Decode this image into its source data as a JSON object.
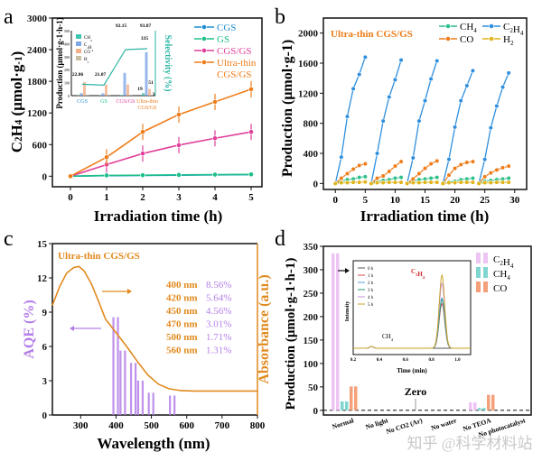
{
  "colors": {
    "cgs": "#1f8fd0",
    "gs": "#1dbf8a",
    "cgsgs": "#e0409a",
    "ultra": "#ee7d1a",
    "ch4": "#2dc08a",
    "c2h4": "#2f8fde",
    "co": "#ee7d1a",
    "h2": "#e0b41a",
    "aqe": "#b47ee8",
    "absorb": "#e08a1e"
  },
  "chart_data": [
    {
      "panel": "a",
      "type": "line",
      "xlabel": "Irradiation time (h)",
      "ylabel": "C2H4 (μmol·g-1)",
      "xlim": [
        -0.8,
        5.5
      ],
      "ylim": [
        -200,
        3000
      ],
      "xticks": [
        0,
        1,
        2,
        3,
        4,
        5
      ],
      "yticks": [
        0,
        600,
        1200,
        1800,
        2400,
        3000
      ],
      "x": [
        0,
        1,
        2,
        3,
        4,
        5
      ],
      "series": [
        {
          "name": "CGS",
          "values": [
            0,
            10,
            15,
            20,
            25,
            30
          ]
        },
        {
          "name": "GS",
          "values": [
            0,
            15,
            20,
            25,
            30,
            35
          ]
        },
        {
          "name": "CGS/GS",
          "values": [
            0,
            220,
            430,
            590,
            720,
            840
          ]
        },
        {
          "name": "Ultra-thin CGS/GS",
          "values": [
            0,
            360,
            840,
            1170,
            1410,
            1650
          ]
        }
      ],
      "legend": "top-right",
      "inset": {
        "type": "bar+line",
        "ylabel": "Production (μmol·g-1·h-1)",
        "y2label": "Selectivity (%)",
        "ylim": [
          0,
          500
        ],
        "yticks": [
          0,
          100,
          200,
          300,
          400,
          500
        ],
        "categories": [
          "CGS",
          "GS",
          "CGS/GS",
          "Ultra-thin CGS/GS"
        ],
        "series": [
          {
            "name": "CH4",
            "values": [
              2,
              2,
              5,
              19
            ]
          },
          {
            "name": "C2H4",
            "values": [
              20,
              18,
              175,
              335
            ]
          },
          {
            "name": "CO",
            "values": [
              105,
              85,
              85,
              51
            ]
          },
          {
            "name": "H2",
            "values": [
              2,
              2,
              2,
              3
            ]
          }
        ],
        "selectivity": [
          22.86,
          21.07,
          92.15,
          93.87
        ],
        "labels": [
          "22.86",
          "21.07",
          "92.15",
          "93.87",
          "335",
          "19",
          "51",
          "3"
        ]
      }
    },
    {
      "panel": "b",
      "type": "line",
      "title": "Ultra-thin CGS/GS",
      "xlabel": "Irradiation time (h)",
      "ylabel": "Production (μmol·g-1)",
      "xlim": [
        -2,
        32
      ],
      "ylim": [
        -80,
        2200
      ],
      "xticks": [
        0,
        5,
        10,
        15,
        20,
        25,
        30
      ],
      "yticks": [
        0,
        400,
        800,
        1200,
        1600,
        2000
      ],
      "legend": "top-right",
      "cycle_starts": [
        0,
        6,
        12,
        18,
        24
      ],
      "series": [
        {
          "name": "CH4",
          "cycles": [
            [
              0,
              30,
              50,
              60,
              80,
              90
            ],
            [
              0,
              30,
              40,
              50,
              70,
              80
            ],
            [
              0,
              30,
              50,
              60,
              70,
              80
            ],
            [
              0,
              20,
              30,
              50,
              60,
              70
            ],
            [
              0,
              30,
              40,
              50,
              60,
              70
            ]
          ]
        },
        {
          "name": "C2H4",
          "cycles": [
            [
              0,
              350,
              890,
              1260,
              1450,
              1680
            ],
            [
              0,
              400,
              830,
              1150,
              1380,
              1640
            ],
            [
              0,
              340,
              830,
              1100,
              1390,
              1630
            ],
            [
              0,
              320,
              750,
              1100,
              1300,
              1500
            ],
            [
              0,
              320,
              740,
              1030,
              1280,
              1470
            ]
          ]
        },
        {
          "name": "CO",
          "cycles": [
            [
              0,
              70,
              130,
              190,
              240,
              260
            ],
            [
              0,
              70,
              100,
              160,
              230,
              290
            ],
            [
              0,
              60,
              130,
              200,
              260,
              300
            ],
            [
              0,
              110,
              200,
              250,
              280,
              290
            ],
            [
              0,
              90,
              140,
              180,
              210,
              230
            ]
          ]
        },
        {
          "name": "H2",
          "cycles": [
            [
              0,
              10,
              10,
              15,
              15,
              20
            ],
            [
              0,
              10,
              10,
              15,
              15,
              15
            ],
            [
              0,
              10,
              10,
              15,
              15,
              15
            ],
            [
              0,
              10,
              10,
              15,
              15,
              15
            ],
            [
              0,
              10,
              10,
              15,
              15,
              15
            ]
          ]
        }
      ]
    },
    {
      "panel": "c",
      "type": "bar+line",
      "title": "Ultra-thin CGS/GS",
      "xlabel": "Wavelength (nm)",
      "ylabel": "AQE (%)",
      "y2label": "Absorbance (a.u.)",
      "xlim": [
        220,
        800
      ],
      "ylim": [
        0,
        15
      ],
      "xticks": [
        300,
        400,
        500,
        600,
        700,
        800
      ],
      "yticks": [
        0,
        3,
        6,
        9,
        12,
        15
      ],
      "aqe": [
        {
          "wl": "400 nm",
          "val": "8.56%",
          "x": 400,
          "y": 8.56
        },
        {
          "wl": "420 nm",
          "val": "5.64%",
          "x": 420,
          "y": 5.64
        },
        {
          "wl": "450 nm",
          "val": "4.56%",
          "x": 450,
          "y": 4.56
        },
        {
          "wl": "470 nm",
          "val": "3.01%",
          "x": 470,
          "y": 3.01
        },
        {
          "wl": "500 nm",
          "val": "1.71%",
          "x": 500,
          "y": 1.71
        },
        {
          "wl": "560 nm",
          "val": "1.31%",
          "x": 560,
          "y": 1.31
        }
      ],
      "absorbance": [
        [
          220,
          9.6
        ],
        [
          240,
          11.2
        ],
        [
          260,
          12.4
        ],
        [
          280,
          12.9
        ],
        [
          295,
          13.0
        ],
        [
          310,
          12.6
        ],
        [
          330,
          11.5
        ],
        [
          350,
          10.0
        ],
        [
          370,
          8.4
        ],
        [
          400,
          7.2
        ],
        [
          430,
          6.0
        ],
        [
          460,
          4.7
        ],
        [
          490,
          3.5
        ],
        [
          520,
          2.7
        ],
        [
          550,
          2.3
        ],
        [
          580,
          2.15
        ],
        [
          620,
          2.1
        ],
        [
          800,
          2.1
        ]
      ]
    },
    {
      "panel": "d",
      "type": "bar",
      "ylabel": "Production (μmol·g-1·h-1)",
      "ylim": [
        -10,
        350
      ],
      "yticks": [
        0,
        50,
        100,
        150,
        200,
        250,
        300,
        350
      ],
      "categories": [
        "Normal",
        "No light",
        "No CO2 (Ar)",
        "No water",
        "No TEOA",
        "No photocatalyst"
      ],
      "series": [
        {
          "name": "C2H4",
          "values": [
            335,
            0,
            0,
            0,
            17,
            0
          ]
        },
        {
          "name": "CH4",
          "values": [
            19,
            0,
            0,
            0,
            5,
            0
          ]
        },
        {
          "name": "CO",
          "values": [
            51,
            0,
            0,
            0,
            33,
            0
          ]
        }
      ],
      "annotation": "Zero",
      "legend": "top-right",
      "inset": {
        "type": "line",
        "xlabel": "Time (min)",
        "ylabel": "Intensity",
        "xlim": [
          0.2,
          1.1
        ],
        "xticks": [
          "0.2",
          "0.4",
          "0.6",
          "0.8",
          "1.0"
        ],
        "series": [
          {
            "name": "0 h",
            "peak": 0
          },
          {
            "name": "1 h",
            "peak": 0.55
          },
          {
            "name": "2 h",
            "peak": 0.62
          },
          {
            "name": "3 h",
            "peak": 0.6
          },
          {
            "name": "4 h",
            "peak": 0.8
          },
          {
            "name": "5 h",
            "peak": 0.9
          }
        ],
        "labels": [
          "C2H4",
          "CH4"
        ]
      }
    }
  ],
  "panel_labels": [
    "a",
    "b",
    "c",
    "d"
  ],
  "watermark": "知乎 @科学材料站"
}
